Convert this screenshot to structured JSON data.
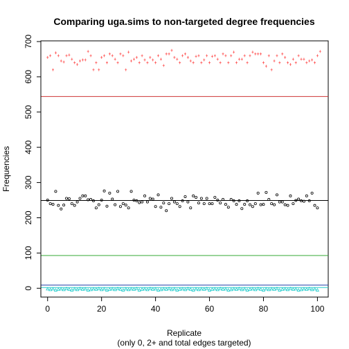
{
  "chart_data": {
    "type": "scatter",
    "title": "Comparing uga.sims to non-targeted degree frequencies",
    "xlabel": "Replicate",
    "xlabel_sub": "(only 0, 2+ and total edges targeted)",
    "ylabel": "Frequencies",
    "xlim": [
      -2.5,
      104
    ],
    "ylim": [
      -25,
      702
    ],
    "x_ticks": [
      0,
      20,
      40,
      60,
      80,
      100
    ],
    "y_ticks": [
      0,
      100,
      200,
      300,
      400,
      500,
      600,
      700
    ],
    "reference_lines": [
      {
        "value": 544,
        "color": "#cd3333"
      },
      {
        "value": 249,
        "color": "#000000"
      },
      {
        "value": 93,
        "color": "#33aa33"
      },
      {
        "value": 9,
        "color": "#1f3fa8"
      },
      {
        "value": 2,
        "color": "#22cccc"
      }
    ],
    "series": [
      {
        "color": "#ff5555",
        "marker": "+",
        "values": [
          655,
          660,
          620,
          668,
          660,
          645,
          642,
          660,
          662,
          650,
          640,
          635,
          645,
          648,
          648,
          672,
          660,
          620,
          640,
          620,
          655,
          660,
          640,
          665,
          660,
          650,
          640,
          665,
          660,
          620,
          670,
          645,
          650,
          655,
          640,
          660,
          648,
          640,
          655,
          648,
          640,
          660,
          650,
          632,
          665,
          665,
          675,
          655,
          650,
          640,
          660,
          665,
          655,
          645,
          640,
          658,
          660,
          640,
          648,
          660,
          640,
          658,
          660,
          650,
          640,
          665,
          660,
          640,
          660,
          670,
          640,
          650,
          650,
          660,
          640,
          660,
          670,
          665,
          665,
          665,
          640,
          630,
          660,
          620,
          645,
          660,
          640,
          665,
          655,
          640,
          635,
          650,
          640,
          660,
          650,
          650,
          640,
          645,
          648,
          640,
          660,
          672
        ]
      },
      {
        "color": "#000000",
        "marker": "o",
        "values": [
          250,
          240,
          238,
          275,
          235,
          225,
          236,
          255,
          254,
          240,
          235,
          245,
          255,
          262,
          262,
          251,
          252,
          248,
          228,
          237,
          250,
          276,
          233,
          270,
          253,
          237,
          275,
          232,
          240,
          236,
          228,
          275,
          250,
          248,
          243,
          245,
          262,
          245,
          255,
          253,
          232,
          265,
          230,
          242,
          220,
          240,
          255,
          245,
          240,
          232,
          248,
          260,
          245,
          228,
          262,
          258,
          242,
          255,
          240,
          255,
          240,
          240,
          258,
          250,
          242,
          252,
          238,
          230,
          252,
          248,
          238,
          248,
          226,
          238,
          248,
          237,
          232,
          240,
          270,
          237,
          238,
          272,
          252,
          240,
          237,
          265,
          245,
          245,
          237,
          235,
          262,
          240,
          249,
          253,
          248,
          247,
          262,
          248,
          270,
          235,
          228
        ]
      },
      {
        "color": "#22cccc",
        "marker": "triangle",
        "values": [
          -2,
          -4,
          -2,
          -5,
          -3,
          -2,
          -4,
          -1,
          -3,
          -5,
          -2,
          -4,
          -1,
          -3,
          -2,
          -5,
          -4,
          -2,
          -3,
          -1,
          -4,
          -2,
          -5,
          -3,
          -2,
          -4,
          -1,
          -3,
          -5,
          -2,
          -4,
          -2,
          -3,
          -1,
          -5,
          -3,
          -2,
          -4,
          -1,
          -3,
          -2,
          -5,
          -4,
          -2,
          -3,
          -1,
          -4,
          -2,
          -5,
          -3,
          -2,
          -4,
          -1,
          -3,
          -5,
          -2,
          -4,
          -2,
          -3,
          -1,
          -5,
          -3,
          -2,
          -4,
          -1,
          -3,
          -2,
          -5,
          -4,
          -2,
          -3,
          -1,
          -4,
          -2,
          -5,
          -3,
          -2,
          -4,
          -1,
          -3,
          -5,
          -2,
          -4,
          -2,
          -3,
          -1,
          -5,
          -3,
          -2,
          -4,
          -1,
          -3,
          -2,
          -5,
          -4,
          -2,
          -3,
          -1,
          -4,
          -2,
          -5
        ]
      }
    ],
    "grid": false,
    "legend": "none"
  }
}
